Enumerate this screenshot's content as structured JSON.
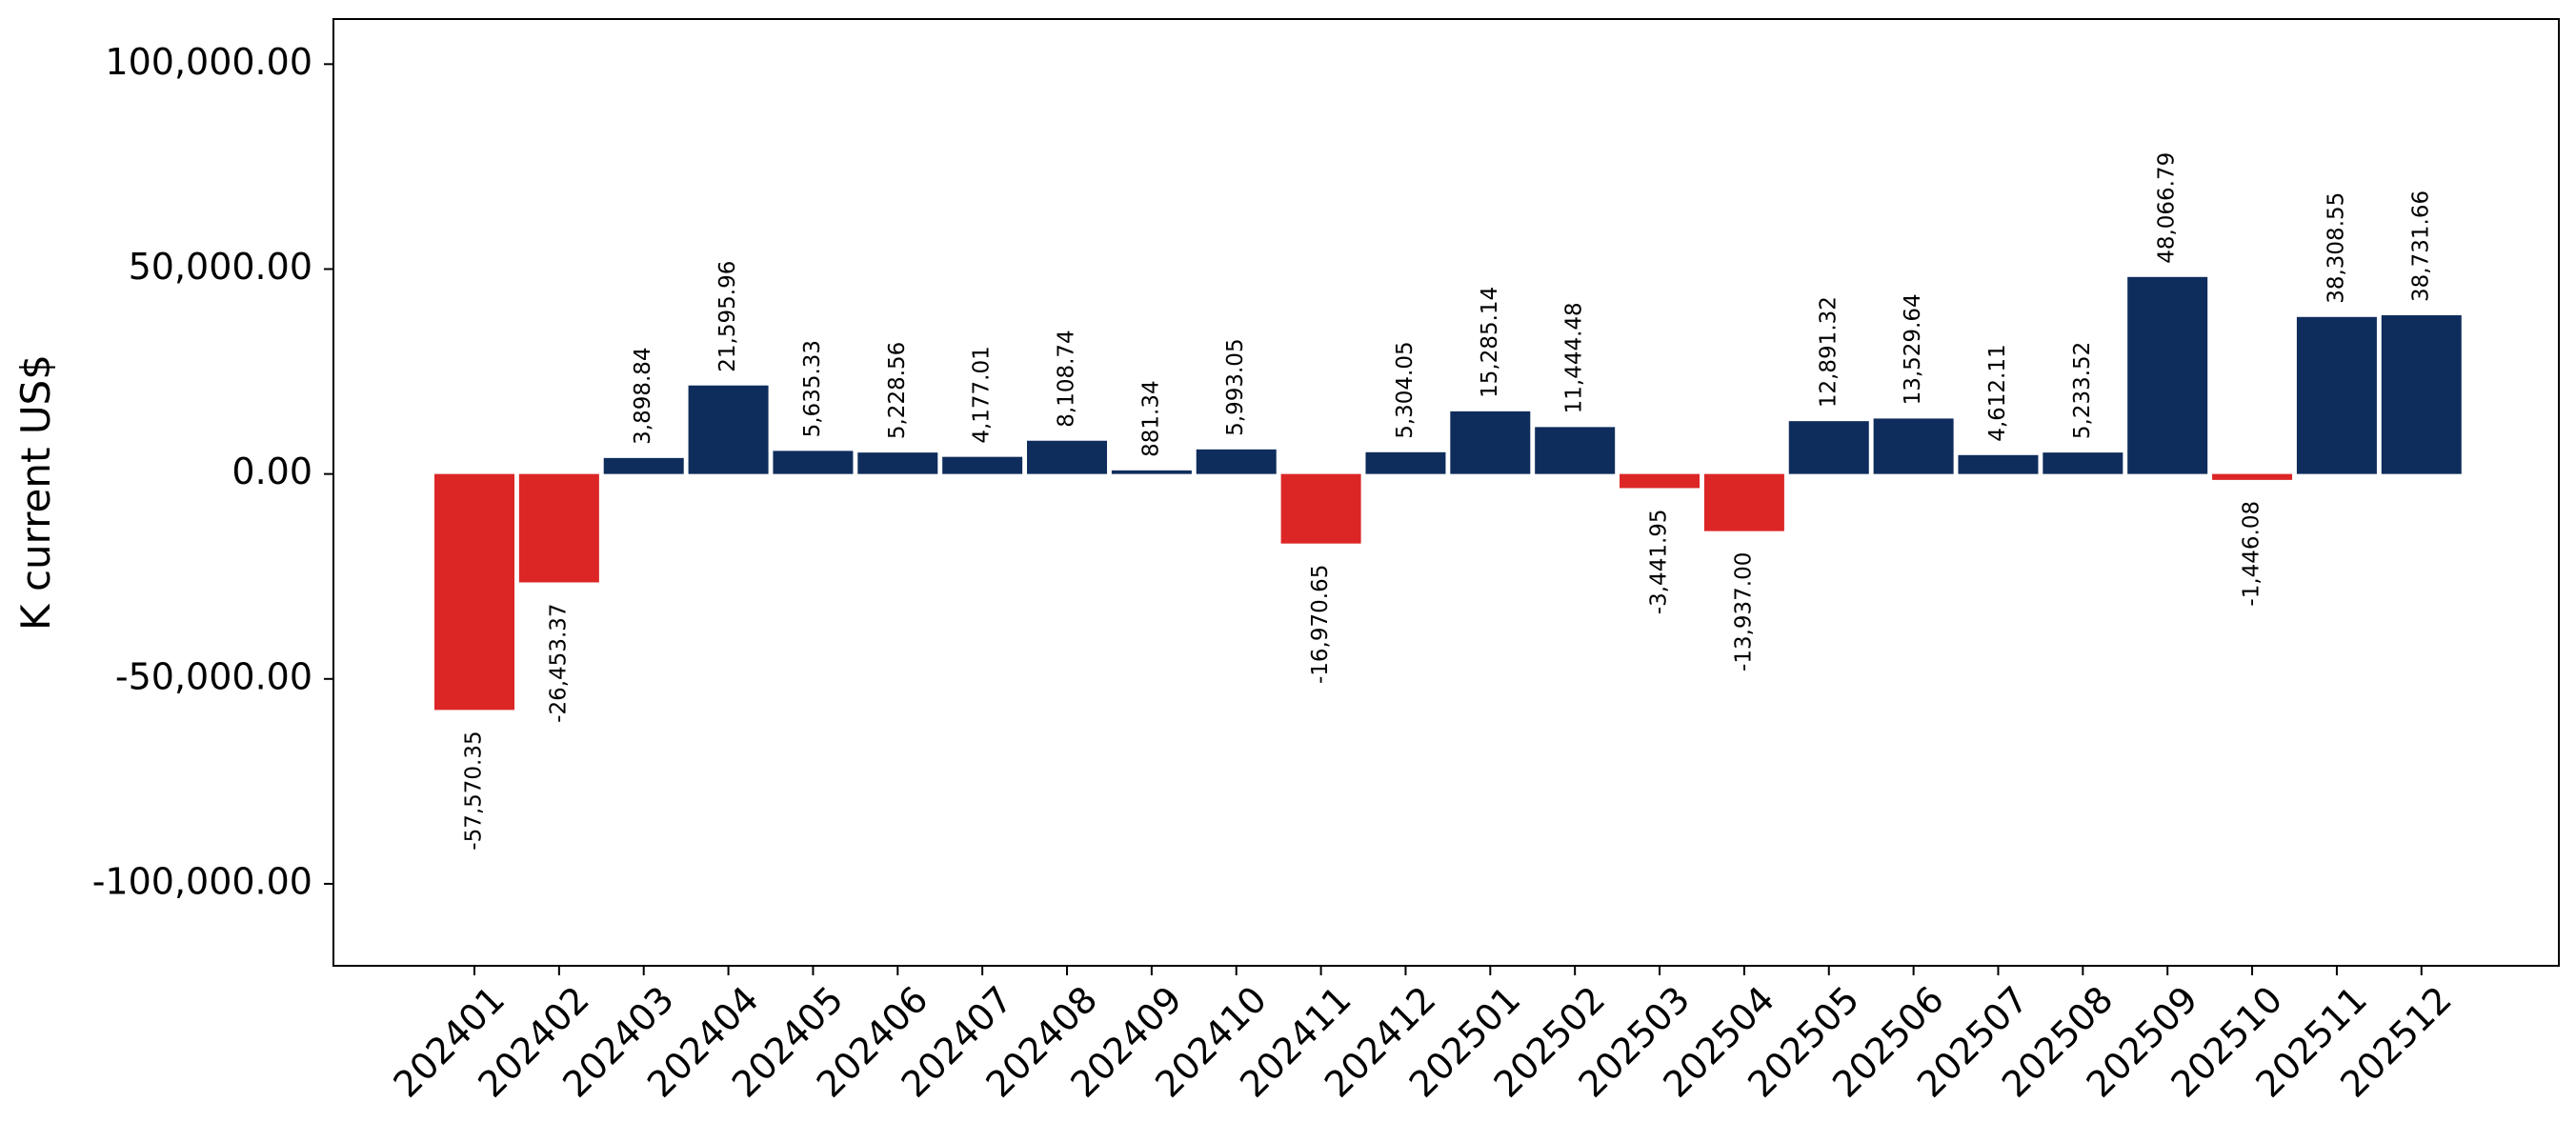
{
  "chart_data": {
    "type": "bar",
    "title": "",
    "xlabel": "",
    "ylabel": "K current US$",
    "ylim": [
      -120000,
      111000
    ],
    "yticks": [
      -100000,
      -50000,
      0,
      50000,
      100000
    ],
    "ytick_labels": [
      "-100,000.00",
      "-50,000.00",
      "0.00",
      "50,000.00",
      "100,000.00"
    ],
    "grid": false,
    "legend": "none",
    "positive_color": "#0f2d5c",
    "negative_color": "#dc2626",
    "categories": [
      "202401",
      "202402",
      "202403",
      "202404",
      "202405",
      "202406",
      "202407",
      "202408",
      "202409",
      "202410",
      "202411",
      "202412",
      "202501",
      "202502",
      "202503",
      "202504",
      "202505",
      "202506",
      "202507",
      "202508",
      "202509",
      "202510",
      "202511",
      "202512"
    ],
    "values": [
      -57570.35,
      -26453.37,
      3898.84,
      21595.96,
      5635.33,
      5228.56,
      4177.01,
      8108.74,
      881.34,
      5993.05,
      -16970.65,
      5304.05,
      15285.14,
      11444.48,
      -3441.95,
      -13937.0,
      12891.32,
      13529.64,
      4612.11,
      5233.52,
      48066.79,
      -1446.08,
      38308.55,
      38731.66
    ],
    "value_labels": [
      "-57,570.35",
      "-26,453.37",
      "3,898.84",
      "21,595.96",
      "5,635.33",
      "5,228.56",
      "4,177.01",
      "8,108.74",
      "881.34",
      "5,993.05",
      "-16,970.65",
      "5,304.05",
      "15,285.14",
      "11,444.48",
      "-3,441.95",
      "-13,937.00",
      "12,891.32",
      "13,529.64",
      "4,612.11",
      "5,233.52",
      "48,066.79",
      "-1,446.08",
      "38,308.55",
      "38,731.66"
    ]
  }
}
